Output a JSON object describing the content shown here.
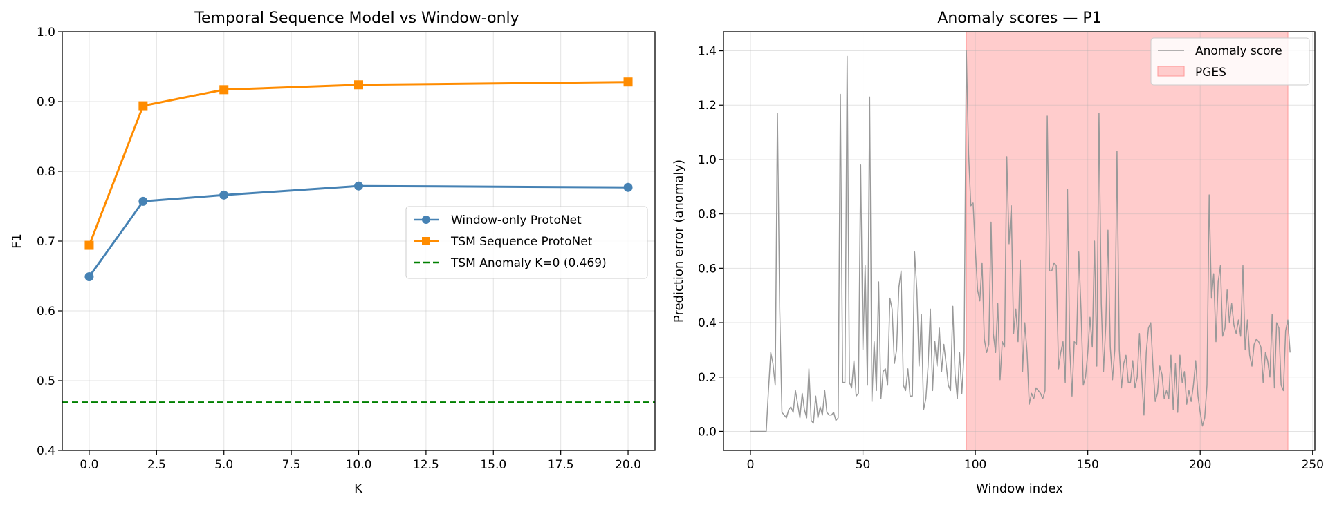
{
  "chart_data": [
    {
      "type": "line",
      "title": "Temporal Sequence Model vs Window-only",
      "xlabel": "K",
      "ylabel": "F1",
      "xlim": [
        -1,
        21
      ],
      "ylim": [
        0.4,
        1.0
      ],
      "xticks": [
        0,
        2.5,
        5,
        7.5,
        10,
        12.5,
        15,
        17.5,
        20
      ],
      "xtick_labels": [
        "0.0",
        "2.5",
        "5.0",
        "7.5",
        "10.0",
        "12.5",
        "15.0",
        "17.5",
        "20.0"
      ],
      "yticks": [
        0.4,
        0.5,
        0.6,
        0.7,
        0.8,
        0.9,
        1.0
      ],
      "ytick_labels": [
        "0.4",
        "0.5",
        "0.6",
        "0.7",
        "0.8",
        "0.9",
        "1.0"
      ],
      "grid": true,
      "legend_position": "center-right",
      "x": [
        0,
        2,
        5,
        10,
        20
      ],
      "series": [
        {
          "name": "Window-only ProtoNet",
          "values": [
            0.649,
            0.757,
            0.766,
            0.779,
            0.777
          ],
          "color": "#4682b4",
          "marker": "circle"
        },
        {
          "name": "TSM Sequence ProtoNet",
          "values": [
            0.694,
            0.894,
            0.917,
            0.924,
            0.928
          ],
          "color": "#ff8c00",
          "marker": "square"
        }
      ],
      "hlines": [
        {
          "name": "TSM Anomaly K=0 (0.469)",
          "value": 0.469,
          "color": "#008000",
          "style": "dashed"
        }
      ]
    },
    {
      "type": "line",
      "title": "Anomaly scores — P1",
      "xlabel": "Window index",
      "ylabel": "Prediction error (anomaly)",
      "xlim": [
        -12,
        251
      ],
      "ylim": [
        -0.07,
        1.47
      ],
      "xticks": [
        0,
        50,
        100,
        150,
        200,
        250
      ],
      "xtick_labels": [
        "0",
        "50",
        "100",
        "150",
        "200",
        "250"
      ],
      "yticks": [
        0.0,
        0.2,
        0.4,
        0.6,
        0.8,
        1.0,
        1.2,
        1.4
      ],
      "ytick_labels": [
        "0.0",
        "0.2",
        "0.4",
        "0.6",
        "0.8",
        "1.0",
        "1.2",
        "1.4"
      ],
      "grid": true,
      "legend_position": "top-right",
      "series": [
        {
          "name": "Anomaly score",
          "color": "#999999",
          "x_start": 0,
          "values": [
            0,
            0,
            0,
            0,
            0,
            0,
            0,
            0,
            0.15,
            0.29,
            0.25,
            0.17,
            1.17,
            0.45,
            0.07,
            0.06,
            0.05,
            0.08,
            0.09,
            0.07,
            0.15,
            0.1,
            0.05,
            0.14,
            0.08,
            0.05,
            0.23,
            0.04,
            0.03,
            0.13,
            0.05,
            0.09,
            0.06,
            0.15,
            0.07,
            0.06,
            0.06,
            0.07,
            0.04,
            0.05,
            1.24,
            0.18,
            0.18,
            1.38,
            0.18,
            0.16,
            0.26,
            0.13,
            0.14,
            0.98,
            0.3,
            0.61,
            0.17,
            1.23,
            0.11,
            0.33,
            0.15,
            0.55,
            0.12,
            0.22,
            0.23,
            0.17,
            0.49,
            0.45,
            0.25,
            0.3,
            0.53,
            0.59,
            0.17,
            0.15,
            0.23,
            0.13,
            0.13,
            0.66,
            0.52,
            0.24,
            0.43,
            0.08,
            0.12,
            0.24,
            0.45,
            0.15,
            0.33,
            0.24,
            0.38,
            0.22,
            0.32,
            0.25,
            0.17,
            0.15,
            0.46,
            0.21,
            0.12,
            0.29,
            0.14,
            0.29,
            1.4,
            1.02,
            0.83,
            0.84,
            0.67,
            0.52,
            0.48,
            0.62,
            0.34,
            0.29,
            0.32,
            0.77,
            0.36,
            0.29,
            0.47,
            0.19,
            0.33,
            0.31,
            1.01,
            0.69,
            0.83,
            0.36,
            0.45,
            0.33,
            0.63,
            0.22,
            0.4,
            0.29,
            0.1,
            0.14,
            0.12,
            0.16,
            0.15,
            0.14,
            0.12,
            0.15,
            1.16,
            0.59,
            0.59,
            0.62,
            0.61,
            0.23,
            0.29,
            0.33,
            0.18,
            0.89,
            0.31,
            0.13,
            0.33,
            0.32,
            0.66,
            0.45,
            0.17,
            0.2,
            0.29,
            0.42,
            0.31,
            0.7,
            0.24,
            1.17,
            0.47,
            0.22,
            0.39,
            0.74,
            0.31,
            0.19,
            0.3,
            1.03,
            0.3,
            0.16,
            0.25,
            0.28,
            0.18,
            0.18,
            0.26,
            0.16,
            0.2,
            0.36,
            0.2,
            0.06,
            0.29,
            0.38,
            0.4,
            0.24,
            0.11,
            0.14,
            0.24,
            0.21,
            0.12,
            0.15,
            0.12,
            0.28,
            0.08,
            0.25,
            0.07,
            0.28,
            0.18,
            0.22,
            0.1,
            0.15,
            0.11,
            0.17,
            0.26,
            0.13,
            0.07,
            0.02,
            0.05,
            0.17,
            0.87,
            0.49,
            0.58,
            0.33,
            0.55,
            0.61,
            0.35,
            0.38,
            0.52,
            0.4,
            0.47,
            0.39,
            0.36,
            0.41,
            0.35,
            0.61,
            0.3,
            0.41,
            0.28,
            0.24,
            0.32,
            0.34,
            0.33,
            0.31,
            0.18,
            0.29,
            0.26,
            0.2,
            0.43,
            0.16,
            0.4,
            0.38,
            0.17,
            0.15,
            0.37,
            0.41,
            0.29
          ]
        }
      ],
      "spans": [
        {
          "name": "PGES",
          "x0": 96,
          "x1": 239,
          "color": "#ff9999"
        }
      ]
    }
  ]
}
